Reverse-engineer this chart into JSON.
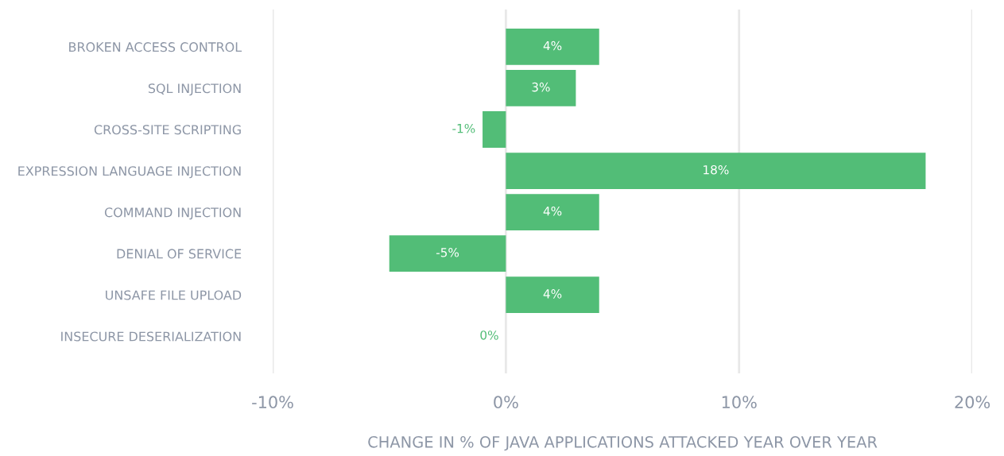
{
  "chart_data": {
    "type": "bar",
    "orientation": "horizontal",
    "categories": [
      "BROKEN ACCESS CONTROL",
      "SQL INJECTION",
      "CROSS-SITE SCRIPTING",
      "EXPRESSION LANGUAGE INJECTION",
      "COMMAND INJECTION",
      "DENIAL OF SERVICE",
      "UNSAFE FILE UPLOAD",
      "INSECURE DESERIALIZATION"
    ],
    "values": [
      4,
      3,
      -1,
      18,
      4,
      -5,
      4,
      0
    ],
    "value_labels": [
      "4%",
      "3%",
      "-1%",
      "18%",
      "4%",
      "-5%",
      "4%",
      "0%"
    ],
    "color": "#52bd77",
    "xlim": [
      -10,
      20
    ],
    "xticks": [
      {
        "value": -10,
        "label": "-10%"
      },
      {
        "value": 0,
        "label": "0%"
      },
      {
        "value": 10,
        "label": "10%"
      },
      {
        "value": 20,
        "label": "20%"
      }
    ],
    "xlabel": "CHANGE IN % OF JAVA APPLICATIONS ATTACKED YEAR OVER YEAR",
    "grid": "x",
    "legend": false
  }
}
